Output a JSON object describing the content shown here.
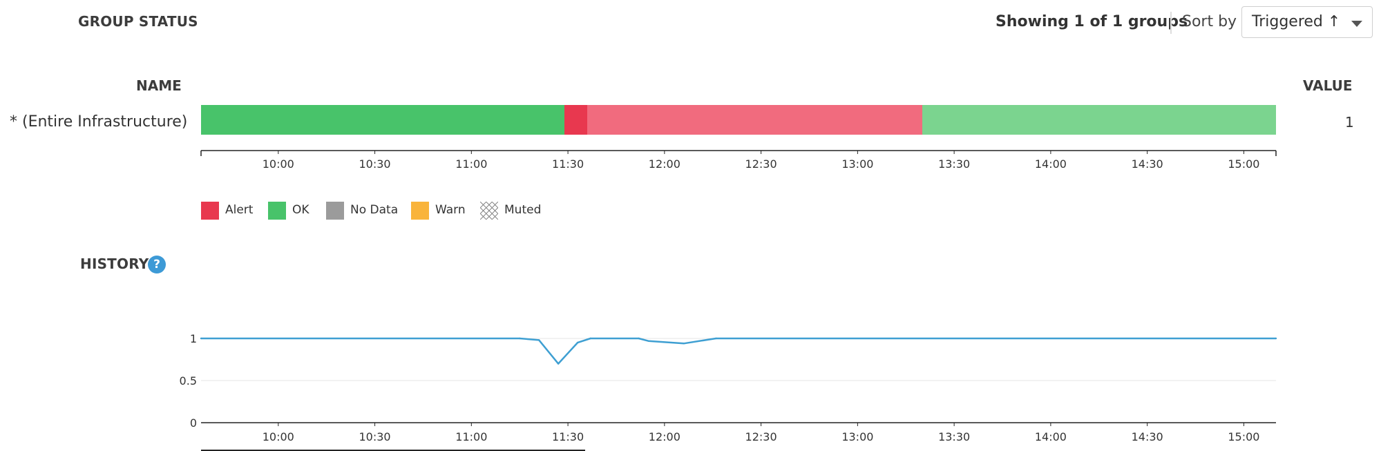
{
  "group_status": {
    "title": "GROUP STATUS",
    "showing": "Showing 1 of 1 groups",
    "sort_by_label": "Sort by",
    "sort_value": "Triggered ↑",
    "columns": {
      "name": "NAME",
      "value": "VALUE"
    },
    "rows": [
      {
        "name": "* (Entire Infrastructure)",
        "value": "1"
      }
    ],
    "timeline": {
      "start": "09:36",
      "end": "15:10",
      "segments": [
        {
          "status": "OK",
          "from": "09:36",
          "to": "11:29",
          "color": "#48c36a"
        },
        {
          "status": "Alert",
          "from": "11:29",
          "to": "11:36",
          "color": "#e8384f"
        },
        {
          "status": "Alert",
          "from": "11:36",
          "to": "13:20",
          "color": "#f16b7e"
        },
        {
          "status": "OK",
          "from": "13:20",
          "to": "15:10",
          "color": "#7bd48f"
        }
      ]
    },
    "time_ticks": [
      "10:00",
      "10:30",
      "11:00",
      "11:30",
      "12:00",
      "12:30",
      "13:00",
      "13:30",
      "14:00",
      "14:30",
      "15:00"
    ],
    "legend": [
      {
        "label": "Alert",
        "color": "#e8384f"
      },
      {
        "label": "OK",
        "color": "#48c36a"
      },
      {
        "label": "No Data",
        "color": "#9b9b9b"
      },
      {
        "label": "Warn",
        "color": "#f9b43b"
      },
      {
        "label": "Muted",
        "color": "hatched"
      }
    ]
  },
  "history": {
    "title": "HISTORY",
    "help_icon": "question-circle-icon",
    "chart_data": {
      "type": "line",
      "x": [
        "09:36",
        "11:15",
        "11:21",
        "11:27",
        "11:33",
        "11:37",
        "11:52",
        "11:55",
        "12:06",
        "12:16",
        "15:10"
      ],
      "series": [
        {
          "values": [
            1,
            1,
            0.98,
            0.7,
            0.95,
            1,
            1,
            0.97,
            0.94,
            1,
            1
          ],
          "color": "#3e9fd2"
        }
      ],
      "y_ticks": [
        "1",
        "0.5",
        "0"
      ],
      "ylim": [
        0,
        1
      ],
      "x_ticks": [
        "10:00",
        "10:30",
        "11:00",
        "11:30",
        "12:00",
        "12:30",
        "13:00",
        "13:30",
        "14:00",
        "14:30",
        "15:00"
      ],
      "grid": true
    }
  }
}
